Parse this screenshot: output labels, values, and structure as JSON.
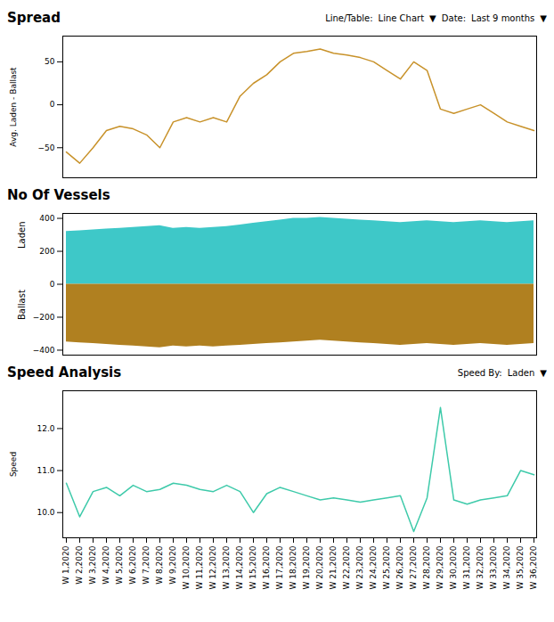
{
  "chart_data": [
    {
      "type": "line",
      "title": "Spread",
      "ylabel": "Avg. Laden - Ballast",
      "annotations": [
        "Line/Table:",
        "Line Chart",
        "▼",
        "Date:",
        "Last 9 months",
        "▼"
      ],
      "categories": [
        "W 1,2020",
        "W 2,2020",
        "W 3,2020",
        "W 4,2020",
        "W 5,2020",
        "W 6,2020",
        "W 7,2020",
        "W 8,2020",
        "W 9,2020",
        "W 10,2020",
        "W 11,2020",
        "W 12,2020",
        "W 13,2020",
        "W 14,2020",
        "W 15,2020",
        "W 16,2020",
        "W 17,2020",
        "W 18,2020",
        "W 19,2020",
        "W 20,2020",
        "W 21,2020",
        "W 22,2020",
        "W 23,2020",
        "W 24,2020",
        "W 25,2020",
        "W 26,2020",
        "W 27,2020",
        "W 28,2020",
        "W 29,2020",
        "W 30,2020",
        "W 31,2020",
        "W 32,2020",
        "W 33,2020",
        "W 34,2020",
        "W 35,2020",
        "W 36,2020"
      ],
      "values": [
        -55,
        -68,
        -50,
        -30,
        -25,
        -28,
        -35,
        -50,
        -20,
        -15,
        -20,
        -15,
        -20,
        10,
        25,
        35,
        50,
        60,
        62,
        65,
        60,
        58,
        55,
        50,
        40,
        30,
        50,
        40,
        -5,
        -10,
        -5,
        0,
        -10,
        -20,
        -25,
        -30
      ],
      "color": "#c8922a",
      "ylim": [
        -85,
        80
      ],
      "yticks": [
        -50,
        0,
        50
      ],
      "tick_labels": "y"
    },
    {
      "type": "area",
      "title": "No Of Vessels",
      "categories": [
        "W 1,2020",
        "W 2,2020",
        "W 3,2020",
        "W 4,2020",
        "W 5,2020",
        "W 6,2020",
        "W 7,2020",
        "W 8,2020",
        "W 9,2020",
        "W 10,2020",
        "W 11,2020",
        "W 12,2020",
        "W 13,2020",
        "W 14,2020",
        "W 15,2020",
        "W 16,2020",
        "W 17,2020",
        "W 18,2020",
        "W 19,2020",
        "W 20,2020",
        "W 21,2020",
        "W 22,2020",
        "W 23,2020",
        "W 24,2020",
        "W 25,2020",
        "W 26,2020",
        "W 27,2020",
        "W 28,2020",
        "W 29,2020",
        "W 30,2020",
        "W 31,2020",
        "W 32,2020",
        "W 33,2020",
        "W 34,2020",
        "W 35,2020",
        "W 36,2020"
      ],
      "series": [
        {
          "name": "Laden",
          "color": "#3ec8c8",
          "values": [
            320,
            325,
            330,
            335,
            340,
            345,
            350,
            355,
            340,
            345,
            340,
            345,
            350,
            360,
            370,
            380,
            390,
            400,
            400,
            405,
            400,
            395,
            390,
            385,
            380,
            375,
            380,
            385,
            380,
            375,
            380,
            385,
            380,
            375,
            380,
            385
          ]
        },
        {
          "name": "Ballast",
          "color": "#b08020",
          "values": [
            -350,
            -355,
            -360,
            -365,
            -370,
            -375,
            -380,
            -385,
            -375,
            -380,
            -375,
            -380,
            -375,
            -370,
            -365,
            -360,
            -355,
            -350,
            -345,
            -340,
            -345,
            -350,
            -355,
            -360,
            -365,
            -370,
            -365,
            -360,
            -365,
            -370,
            -365,
            -360,
            -365,
            -370,
            -365,
            -360
          ]
        }
      ],
      "ylim": [
        -430,
        430
      ],
      "yticks": [
        -400,
        -200,
        0,
        200,
        400
      ],
      "tick_labels": "y"
    },
    {
      "type": "line",
      "title": "Speed Analysis",
      "ylabel": "Speed",
      "annotations": [
        "Speed By:",
        "Laden",
        "▼"
      ],
      "categories": [
        "W 1,2020",
        "W 2,2020",
        "W 3,2020",
        "W 4,2020",
        "W 5,2020",
        "W 6,2020",
        "W 7,2020",
        "W 8,2020",
        "W 9,2020",
        "W 10,2020",
        "W 11,2020",
        "W 12,2020",
        "W 13,2020",
        "W 14,2020",
        "W 15,2020",
        "W 16,2020",
        "W 17,2020",
        "W 18,2020",
        "W 19,2020",
        "W 20,2020",
        "W 21,2020",
        "W 22,2020",
        "W 23,2020",
        "W 24,2020",
        "W 25,2020",
        "W 26,2020",
        "W 27,2020",
        "W 28,2020",
        "W 29,2020",
        "W 30,2020",
        "W 31,2020",
        "W 32,2020",
        "W 33,2020",
        "W 34,2020",
        "W 35,2020",
        "W 36,2020"
      ],
      "values": [
        10.7,
        9.9,
        10.5,
        10.6,
        10.4,
        10.65,
        10.5,
        10.55,
        10.7,
        10.65,
        10.55,
        10.5,
        10.65,
        10.5,
        10.0,
        10.45,
        10.6,
        10.5,
        10.4,
        10.3,
        10.35,
        10.3,
        10.25,
        10.3,
        10.35,
        10.4,
        9.55,
        10.35,
        12.5,
        10.3,
        10.2,
        10.3,
        10.35,
        10.4,
        11.0,
        10.9
      ],
      "color": "#3ecaaa",
      "ylim": [
        9.4,
        12.9
      ],
      "yticks": [
        10,
        11,
        12
      ]
    }
  ]
}
